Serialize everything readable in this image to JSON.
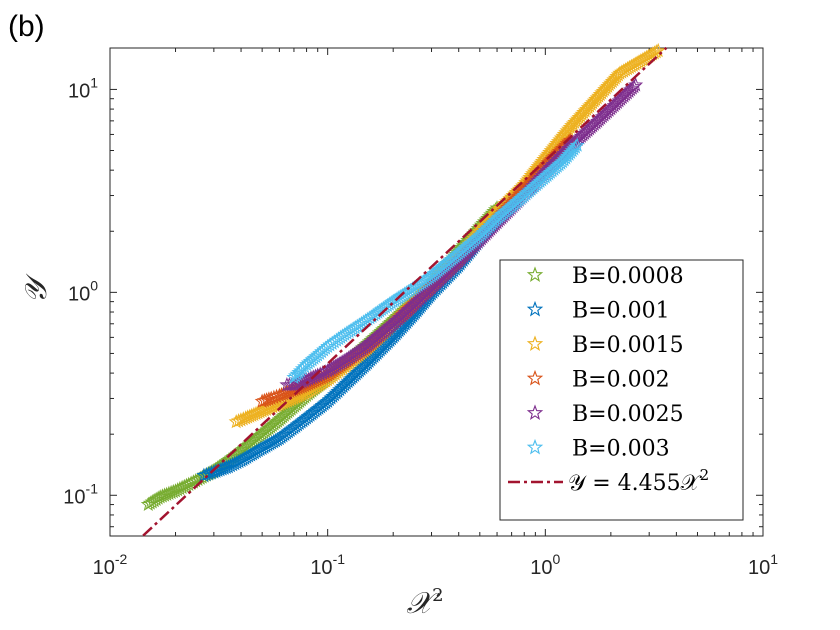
{
  "panel_label": "(b)",
  "chart_data": {
    "type": "scatter",
    "xscale": "log",
    "yscale": "log",
    "xlabel": "𝒳",
    "xlabel_sup": "2",
    "ylabel": "𝒴",
    "xlim": [
      0.01,
      10
    ],
    "ylim": [
      0.063,
      16
    ],
    "x_ticks": [
      {
        "base": "10",
        "exp": "-2"
      },
      {
        "base": "10",
        "exp": "-1"
      },
      {
        "base": "10",
        "exp": "0"
      },
      {
        "base": "10",
        "exp": "1"
      }
    ],
    "y_ticks": [
      {
        "base": "10",
        "exp": "-1"
      },
      {
        "base": "10",
        "exp": "0"
      },
      {
        "base": "10",
        "exp": "1"
      }
    ],
    "series": [
      {
        "name": "B=0.0008",
        "color": "#77AC30",
        "marker": "star",
        "x": [
          0.015,
          0.017,
          0.02,
          0.023,
          0.026,
          0.03,
          0.035,
          0.04,
          0.05,
          0.06,
          0.08,
          0.1,
          0.13,
          0.17,
          0.22,
          0.3,
          0.4,
          0.5,
          0.6
        ],
        "y": [
          0.09,
          0.098,
          0.105,
          0.113,
          0.121,
          0.132,
          0.148,
          0.165,
          0.2,
          0.235,
          0.31,
          0.38,
          0.48,
          0.62,
          0.8,
          1.1,
          1.6,
          2.1,
          2.6
        ]
      },
      {
        "name": "B=0.001",
        "color": "#0072BD",
        "marker": "star",
        "x": [
          0.027,
          0.03,
          0.035,
          0.04,
          0.05,
          0.06,
          0.07,
          0.08,
          0.1,
          0.12,
          0.15,
          0.2,
          0.25,
          0.3,
          0.4,
          0.5,
          0.6,
          0.7,
          0.9,
          1.1
        ],
        "y": [
          0.125,
          0.13,
          0.138,
          0.148,
          0.17,
          0.19,
          0.215,
          0.24,
          0.29,
          0.35,
          0.44,
          0.6,
          0.78,
          0.98,
          1.35,
          1.8,
          2.3,
          2.8,
          3.7,
          4.8
        ]
      },
      {
        "name": "B=0.0015",
        "color": "#EDB120",
        "marker": "star",
        "x": [
          0.038,
          0.042,
          0.05,
          0.06,
          0.07,
          0.08,
          0.1,
          0.12,
          0.15,
          0.2,
          0.25,
          0.3,
          0.4,
          0.5,
          0.6,
          0.8,
          1.0,
          1.3,
          2.2,
          3.3
        ],
        "y": [
          0.23,
          0.24,
          0.26,
          0.28,
          0.3,
          0.32,
          0.37,
          0.43,
          0.52,
          0.7,
          0.9,
          1.1,
          1.5,
          2.0,
          2.5,
          3.4,
          4.6,
          6.5,
          12.0,
          15.5
        ]
      },
      {
        "name": "B=0.002",
        "color": "#D95319",
        "marker": "star",
        "x": [
          0.05,
          0.055,
          0.06,
          0.07,
          0.08,
          0.1,
          0.12,
          0.15,
          0.2,
          0.25,
          0.3,
          0.4,
          0.5,
          0.6,
          0.8,
          1.0,
          1.3
        ],
        "y": [
          0.29,
          0.3,
          0.31,
          0.33,
          0.35,
          0.39,
          0.45,
          0.53,
          0.7,
          0.88,
          1.07,
          1.45,
          1.9,
          2.3,
          3.2,
          4.2,
          5.6
        ]
      },
      {
        "name": "B=0.0025",
        "color": "#7E2F8E",
        "marker": "star",
        "x": [
          0.065,
          0.07,
          0.08,
          0.09,
          0.1,
          0.12,
          0.15,
          0.2,
          0.25,
          0.3,
          0.4,
          0.5,
          0.6,
          0.8,
          1.0,
          1.3,
          1.8,
          2.6
        ],
        "y": [
          0.35,
          0.35,
          0.37,
          0.39,
          0.41,
          0.46,
          0.54,
          0.7,
          0.87,
          1.05,
          1.42,
          1.8,
          2.2,
          3.0,
          3.9,
          5.2,
          7.2,
          10.5
        ]
      },
      {
        "name": "B=0.003",
        "color": "#4DBEEE",
        "marker": "star",
        "x": [
          0.07,
          0.075,
          0.08,
          0.09,
          0.1,
          0.11,
          0.12,
          0.14,
          0.16,
          0.2,
          0.25,
          0.3,
          0.4,
          0.5,
          0.6,
          0.8,
          1.0,
          1.2,
          1.4
        ],
        "y": [
          0.38,
          0.41,
          0.44,
          0.49,
          0.54,
          0.58,
          0.62,
          0.69,
          0.76,
          0.9,
          1.05,
          1.2,
          1.55,
          1.9,
          2.3,
          3.0,
          3.7,
          4.4,
          5.3
        ]
      }
    ],
    "fit_line": {
      "label": "𝒴 = 4.455𝒳",
      "label_sup": "2",
      "color": "#A2142F",
      "style": "dash-dot",
      "coef": 4.455,
      "x_range": [
        0.0142,
        3.6
      ]
    },
    "legend_position": "bottom-right"
  }
}
